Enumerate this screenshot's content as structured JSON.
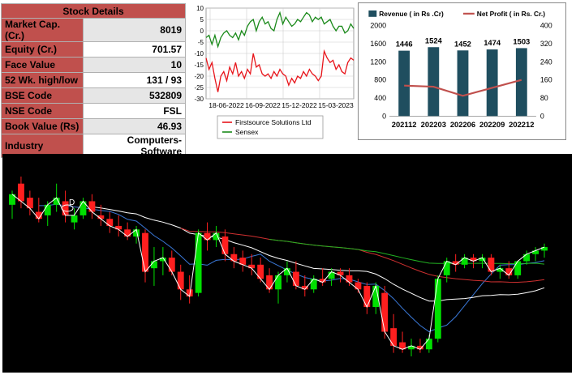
{
  "stock_details": {
    "title": "Stock Details",
    "rows": [
      {
        "label": "Market Cap. (Cr.)",
        "value": "8019"
      },
      {
        "label": "Equity (Cr.)",
        "value": "701.57"
      },
      {
        "label": "Face Value",
        "value": "10"
      },
      {
        "label": "52 Wk. high/low",
        "value": "131 / 93"
      },
      {
        "label": "BSE Code",
        "value": "532809"
      },
      {
        "label": "NSE Code",
        "value": "FSL"
      },
      {
        "label": "Book Value (Rs)",
        "value": "46.93"
      },
      {
        "label": "Industry",
        "value": "Computers-Software"
      }
    ]
  },
  "chart_data": [
    {
      "type": "line",
      "x_ticks": [
        "18-06-2022",
        "16-09-2022",
        "15-12-2022",
        "15-03-2023"
      ],
      "y_ticks": [
        "10",
        "5",
        "0",
        "-5",
        "-10",
        "-15",
        "-20",
        "-25",
        "-30"
      ],
      "ylim": [
        -30,
        10
      ],
      "grid": true,
      "legend_position": "bottom",
      "series": [
        {
          "name": "Firstsource Solutions Ltd",
          "color": "#e8141a",
          "x": [
            0,
            5,
            10,
            15,
            20,
            25,
            30,
            35,
            40,
            45,
            50,
            55,
            60,
            65,
            70,
            75,
            80,
            85,
            90,
            95,
            100,
            105,
            110,
            115,
            120,
            125,
            130,
            135,
            140,
            145,
            150,
            155,
            160,
            165,
            170,
            175,
            180,
            185,
            190,
            195,
            200,
            205,
            210,
            215,
            220,
            225,
            230,
            235,
            240,
            245,
            250
          ],
          "y": [
            -12,
            -17,
            -14,
            -21,
            -27,
            -20,
            -18,
            -22,
            -16,
            -19,
            -14,
            -20,
            -18,
            -21,
            -17,
            -19,
            -10,
            -16,
            -15,
            -19,
            -20,
            -19,
            -21,
            -18,
            -20,
            -17,
            -19,
            -20,
            -24,
            -21,
            -23,
            -20,
            -21,
            -18,
            -20,
            -17,
            -19,
            -20,
            -22,
            -20,
            -9,
            -12,
            -14,
            -13,
            -17,
            -15,
            -18,
            -19,
            -14,
            -12,
            -13
          ]
        },
        {
          "name": "Sensex",
          "color": "#1a8a1a",
          "x": [
            0,
            5,
            10,
            15,
            20,
            25,
            30,
            35,
            40,
            45,
            50,
            55,
            60,
            65,
            70,
            75,
            80,
            85,
            90,
            95,
            100,
            105,
            110,
            115,
            120,
            125,
            130,
            135,
            140,
            145,
            150,
            155,
            160,
            165,
            170,
            175,
            180,
            185,
            190,
            195,
            200,
            205,
            210,
            215,
            220,
            225,
            230,
            235,
            240,
            245,
            250
          ],
          "y": [
            -3,
            -2,
            -6,
            -2,
            -7,
            -3,
            -1,
            0,
            -2,
            -3,
            -1,
            -4,
            0,
            -2,
            2,
            4,
            5,
            0,
            4,
            6,
            3,
            4,
            1,
            0,
            5,
            8,
            3,
            6,
            4,
            2,
            3,
            5,
            4,
            6,
            8,
            7,
            4,
            6,
            5,
            6,
            3,
            4,
            5,
            2,
            0,
            2,
            2,
            -1,
            0,
            3,
            1
          ]
        }
      ]
    },
    {
      "type": "bar",
      "categories": [
        "202112",
        "202203",
        "202206",
        "202209",
        "202212"
      ],
      "y_ticks_left": [
        "2000",
        "1600",
        "1200",
        "800",
        "400",
        "0"
      ],
      "y_ticks_right": [
        "400",
        "320",
        "240",
        "160",
        "80",
        "0"
      ],
      "ylim": [
        0,
        2000
      ],
      "y2lim": [
        0,
        400
      ],
      "legend_position": "top",
      "series": [
        {
          "name": "Revenue ( in Rs .Cr)",
          "type": "bar",
          "color": "#1f4e5f",
          "values": [
            1446,
            1524,
            1452,
            1474,
            1503
          ],
          "labels": [
            "1446",
            "1524",
            "1452",
            "1474",
            "1503"
          ]
        },
        {
          "name": "Net Profit ( in Rs. Cr.)",
          "type": "line",
          "color": "#c0504d",
          "axis": "right",
          "values": [
            135,
            130,
            90,
            125,
            160
          ]
        }
      ]
    },
    {
      "type": "candlestick",
      "background": "#000000",
      "up_color": "#00e000",
      "down_color": "#ff1f1f",
      "annotation": "D",
      "candles": [
        {
          "o": 102,
          "h": 106,
          "l": 98,
          "c": 105
        },
        {
          "o": 108,
          "h": 110,
          "l": 101,
          "c": 103
        },
        {
          "o": 104,
          "h": 106,
          "l": 99,
          "c": 101
        },
        {
          "o": 100,
          "h": 104,
          "l": 97,
          "c": 98
        },
        {
          "o": 99,
          "h": 103,
          "l": 96,
          "c": 102
        },
        {
          "o": 102,
          "h": 108,
          "l": 100,
          "c": 104
        },
        {
          "o": 103,
          "h": 106,
          "l": 97,
          "c": 99
        },
        {
          "o": 97,
          "h": 101,
          "l": 95,
          "c": 99
        },
        {
          "o": 99,
          "h": 104,
          "l": 98,
          "c": 103
        },
        {
          "o": 103,
          "h": 105,
          "l": 98,
          "c": 100
        },
        {
          "o": 99,
          "h": 102,
          "l": 96,
          "c": 98
        },
        {
          "o": 98,
          "h": 100,
          "l": 94,
          "c": 96
        },
        {
          "o": 96,
          "h": 99,
          "l": 93,
          "c": 95
        },
        {
          "o": 95,
          "h": 97,
          "l": 92,
          "c": 93
        },
        {
          "o": 93,
          "h": 96,
          "l": 91,
          "c": 95
        },
        {
          "o": 94,
          "h": 95,
          "l": 80,
          "c": 83
        },
        {
          "o": 84,
          "h": 90,
          "l": 79,
          "c": 86
        },
        {
          "o": 86,
          "h": 90,
          "l": 82,
          "c": 87
        },
        {
          "o": 87,
          "h": 89,
          "l": 82,
          "c": 83
        },
        {
          "o": 83,
          "h": 85,
          "l": 75,
          "c": 78
        },
        {
          "o": 78,
          "h": 82,
          "l": 74,
          "c": 76
        },
        {
          "o": 77,
          "h": 95,
          "l": 76,
          "c": 94
        },
        {
          "o": 94,
          "h": 97,
          "l": 89,
          "c": 92
        },
        {
          "o": 92,
          "h": 96,
          "l": 90,
          "c": 94
        },
        {
          "o": 93,
          "h": 95,
          "l": 86,
          "c": 88
        },
        {
          "o": 88,
          "h": 90,
          "l": 84,
          "c": 86
        },
        {
          "o": 87,
          "h": 89,
          "l": 83,
          "c": 85
        },
        {
          "o": 85,
          "h": 88,
          "l": 82,
          "c": 84
        },
        {
          "o": 85,
          "h": 87,
          "l": 80,
          "c": 81
        },
        {
          "o": 82,
          "h": 84,
          "l": 77,
          "c": 78
        },
        {
          "o": 78,
          "h": 83,
          "l": 74,
          "c": 82
        },
        {
          "o": 82,
          "h": 86,
          "l": 80,
          "c": 84
        },
        {
          "o": 83,
          "h": 86,
          "l": 78,
          "c": 79
        },
        {
          "o": 79,
          "h": 82,
          "l": 76,
          "c": 78
        },
        {
          "o": 78,
          "h": 82,
          "l": 77,
          "c": 81
        },
        {
          "o": 81,
          "h": 84,
          "l": 79,
          "c": 80
        },
        {
          "o": 81,
          "h": 84,
          "l": 79,
          "c": 83
        },
        {
          "o": 83,
          "h": 84,
          "l": 80,
          "c": 82
        },
        {
          "o": 82,
          "h": 84,
          "l": 79,
          "c": 80
        },
        {
          "o": 80,
          "h": 81,
          "l": 77,
          "c": 78
        },
        {
          "o": 79,
          "h": 80,
          "l": 71,
          "c": 73
        },
        {
          "o": 73,
          "h": 80,
          "l": 71,
          "c": 79
        },
        {
          "o": 77,
          "h": 79,
          "l": 64,
          "c": 66
        },
        {
          "o": 67,
          "h": 71,
          "l": 60,
          "c": 62
        },
        {
          "o": 63,
          "h": 66,
          "l": 60,
          "c": 61
        },
        {
          "o": 61,
          "h": 64,
          "l": 59,
          "c": 62
        },
        {
          "o": 62,
          "h": 64,
          "l": 60,
          "c": 61
        },
        {
          "o": 61,
          "h": 65,
          "l": 60,
          "c": 64
        },
        {
          "o": 64,
          "h": 82,
          "l": 63,
          "c": 81
        },
        {
          "o": 82,
          "h": 87,
          "l": 80,
          "c": 86
        },
        {
          "o": 86,
          "h": 88,
          "l": 83,
          "c": 85
        },
        {
          "o": 85,
          "h": 88,
          "l": 84,
          "c": 87
        },
        {
          "o": 87,
          "h": 88,
          "l": 84,
          "c": 86
        },
        {
          "o": 86,
          "h": 88,
          "l": 84,
          "c": 87
        },
        {
          "o": 87,
          "h": 88,
          "l": 82,
          "c": 83
        },
        {
          "o": 83,
          "h": 85,
          "l": 81,
          "c": 84
        },
        {
          "o": 84,
          "h": 86,
          "l": 81,
          "c": 82
        },
        {
          "o": 82,
          "h": 86,
          "l": 81,
          "c": 86
        },
        {
          "o": 86,
          "h": 89,
          "l": 85,
          "c": 88
        },
        {
          "o": 88,
          "h": 90,
          "l": 86,
          "c": 89
        },
        {
          "o": 89,
          "h": 91,
          "l": 87,
          "c": 90
        }
      ]
    }
  ]
}
